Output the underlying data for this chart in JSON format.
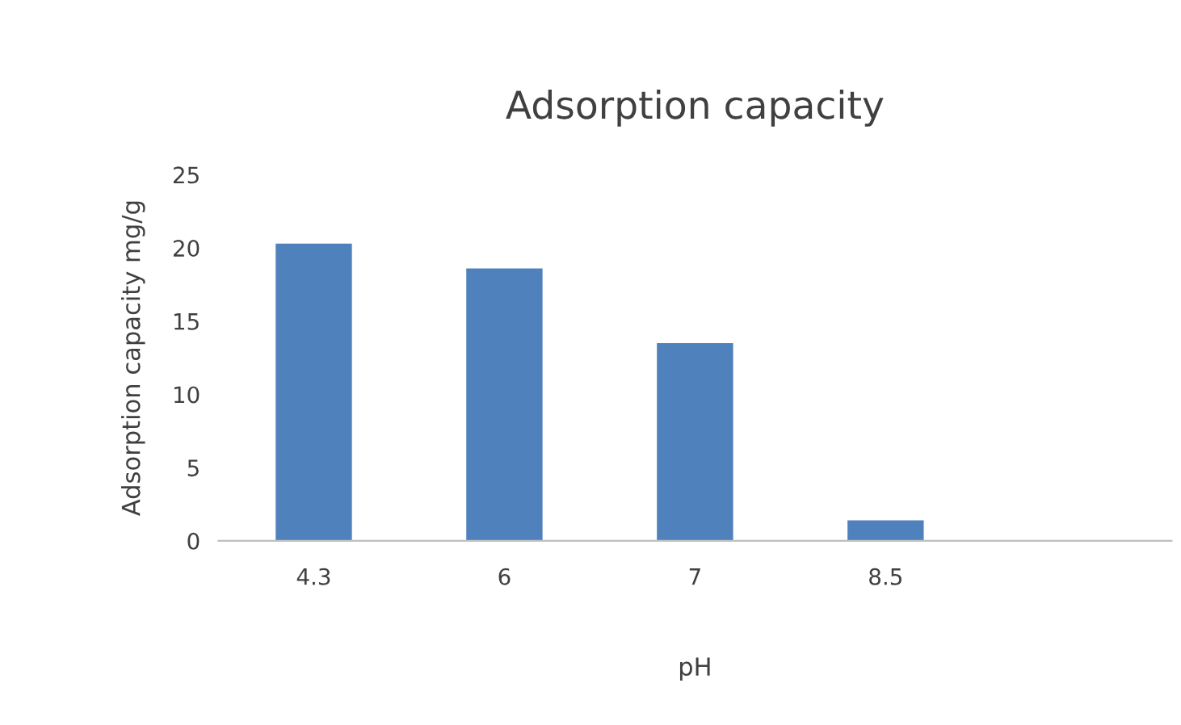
{
  "chart_data": {
    "type": "bar",
    "title": "Adsorption capacity",
    "xlabel": "pH",
    "ylabel": "Adsorption capacity mg/g",
    "categories": [
      "4.3",
      "6",
      "7",
      "8.5",
      null
    ],
    "values": [
      20.3,
      18.6,
      13.5,
      1.4,
      null
    ],
    "color": "#4f81bd",
    "ylim": [
      0,
      25
    ],
    "yticks": [
      0,
      5,
      10,
      15,
      20,
      25
    ],
    "grid": false,
    "legend": false
  }
}
